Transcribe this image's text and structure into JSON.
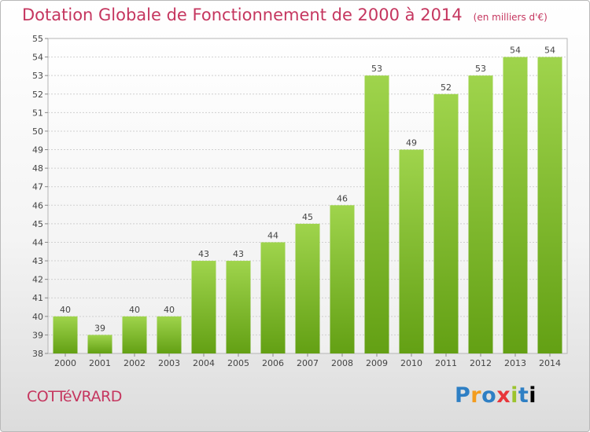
{
  "header": {
    "title": "Dotation Globale de Fonctionnement de 2000 à 2014",
    "subtitle": "(en milliers d'€)"
  },
  "commune": "COTTéVRARD",
  "logo": {
    "letters": [
      "P",
      "r",
      "o",
      "x",
      "i",
      "t",
      "i"
    ]
  },
  "colors": {
    "title": "#c5365f",
    "bar_top": "#9fd44c",
    "bar_bottom": "#63a014",
    "grid": "#d0d0d0"
  },
  "chart_data": {
    "type": "bar",
    "title": "Dotation Globale de Fonctionnement de 2000 à 2014",
    "subtitle": "(en milliers d'€)",
    "categories": [
      "2000",
      "2001",
      "2002",
      "2003",
      "2004",
      "2005",
      "2006",
      "2007",
      "2008",
      "2009",
      "2010",
      "2011",
      "2012",
      "2013",
      "2014"
    ],
    "values": [
      40,
      39,
      40,
      40,
      43,
      43,
      44,
      45,
      46,
      53,
      49,
      52,
      53,
      54,
      54
    ],
    "ylim": [
      38,
      55
    ],
    "yticks": [
      38,
      39,
      40,
      41,
      42,
      43,
      44,
      45,
      46,
      47,
      48,
      49,
      50,
      51,
      52,
      53,
      54,
      55
    ],
    "grid": true
  }
}
